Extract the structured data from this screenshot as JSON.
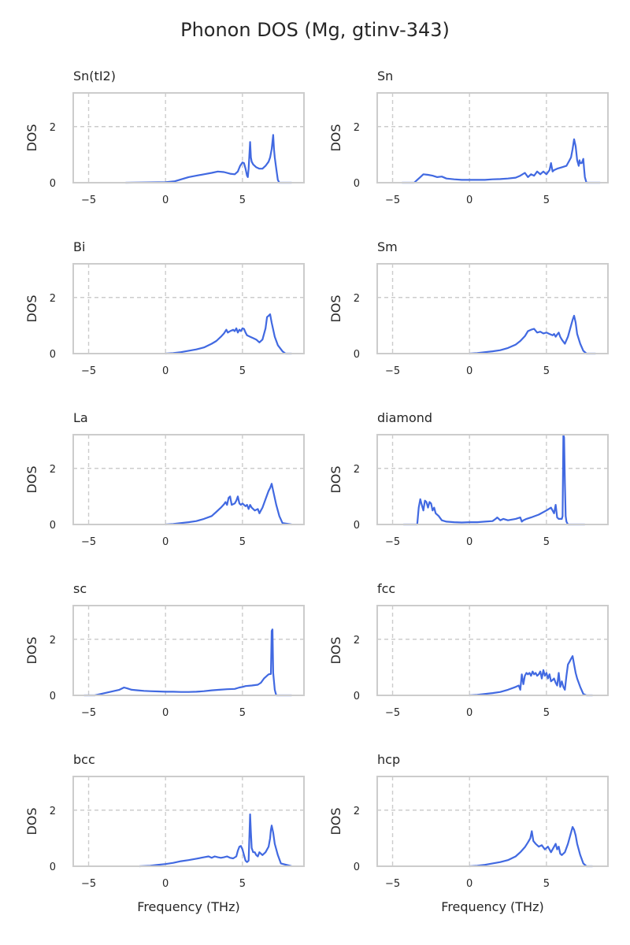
{
  "figure": {
    "title": "Phonon DOS (Mg, gtinv-343)"
  },
  "colors": {
    "line": "#4169e1",
    "grid": "#cccccc",
    "frame": "#cccccc",
    "text": "#262626"
  },
  "chart_data": [
    {
      "type": "line",
      "title": "Sn(tI2)",
      "ylabel": "DOS",
      "xlabel": "",
      "xlim": [
        -6,
        9
      ],
      "ylim": [
        0,
        3.2
      ],
      "xticks": [
        -5,
        0,
        5
      ],
      "yticks": [
        0,
        2
      ],
      "grid": true,
      "x": [
        -2.6,
        -1,
        0,
        0.6,
        0.9,
        1.2,
        1.5,
        2,
        2.5,
        3,
        3.4,
        3.8,
        4.2,
        4.5,
        4.7,
        4.85,
        5,
        5.1,
        5.2,
        5.3,
        5.35,
        5.4,
        5.5,
        5.55,
        5.6,
        5.7,
        5.9,
        6.1,
        6.3,
        6.5,
        6.7,
        6.8,
        6.9,
        7.0,
        7.05,
        7.1,
        7.2,
        7.3,
        7.4,
        8.2
      ],
      "y": [
        0,
        0.01,
        0.02,
        0.05,
        0.1,
        0.15,
        0.2,
        0.25,
        0.3,
        0.35,
        0.4,
        0.38,
        0.32,
        0.3,
        0.4,
        0.6,
        0.72,
        0.7,
        0.5,
        0.25,
        0.2,
        0.5,
        1.45,
        0.9,
        0.75,
        0.65,
        0.55,
        0.5,
        0.5,
        0.6,
        0.75,
        0.9,
        1.2,
        1.7,
        1.2,
        0.9,
        0.5,
        0.1,
        0,
        0
      ]
    },
    {
      "type": "line",
      "title": "Sn",
      "ylabel": "DOS",
      "xlabel": "",
      "xlim": [
        -6,
        9
      ],
      "ylim": [
        0,
        3.2
      ],
      "xticks": [
        -5,
        0,
        5
      ],
      "yticks": [
        0,
        2
      ],
      "grid": true,
      "x": [
        -4.4,
        -3.6,
        -3.4,
        -3.2,
        -3.0,
        -2.7,
        -2.4,
        -2.1,
        -1.8,
        -1.5,
        -1,
        -0.5,
        0,
        0.5,
        1,
        1.5,
        2,
        2.5,
        3,
        3.3,
        3.6,
        3.8,
        4.0,
        4.2,
        4.4,
        4.5,
        4.6,
        4.7,
        4.8,
        5,
        5.2,
        5.3,
        5.4,
        5.5,
        5.7,
        6,
        6.3,
        6.5,
        6.6,
        6.7,
        6.8,
        6.9,
        7.0,
        7.1,
        7.15,
        7.2,
        7.3,
        7.4,
        7.45,
        7.5,
        7.6,
        8.5
      ],
      "y": [
        0,
        0,
        0.1,
        0.2,
        0.3,
        0.28,
        0.25,
        0.2,
        0.22,
        0.15,
        0.12,
        0.1,
        0.1,
        0.1,
        0.1,
        0.12,
        0.13,
        0.15,
        0.18,
        0.25,
        0.35,
        0.2,
        0.3,
        0.25,
        0.4,
        0.35,
        0.3,
        0.35,
        0.4,
        0.3,
        0.45,
        0.7,
        0.4,
        0.45,
        0.5,
        0.55,
        0.6,
        0.8,
        0.9,
        1.2,
        1.55,
        1.3,
        0.8,
        0.6,
        0.8,
        0.7,
        0.7,
        0.85,
        0.5,
        0.2,
        0,
        0
      ]
    },
    {
      "type": "line",
      "title": "Bi",
      "ylabel": "DOS",
      "xlabel": "",
      "xlim": [
        -6,
        9
      ],
      "ylim": [
        0,
        3.2
      ],
      "xticks": [
        -5,
        0,
        5
      ],
      "yticks": [
        0,
        2
      ],
      "grid": true,
      "x": [
        0,
        0.5,
        1,
        1.5,
        2,
        2.5,
        3,
        3.3,
        3.6,
        3.8,
        3.95,
        4.05,
        4.2,
        4.4,
        4.5,
        4.6,
        4.7,
        4.8,
        4.9,
        5.0,
        5.1,
        5.2,
        5.3,
        5.5,
        5.7,
        5.9,
        6.1,
        6.3,
        6.5,
        6.6,
        6.7,
        6.8,
        6.9,
        7.1,
        7.3,
        7.6,
        7.8,
        8.2
      ],
      "y": [
        0,
        0.02,
        0.05,
        0.1,
        0.15,
        0.22,
        0.35,
        0.45,
        0.6,
        0.72,
        0.85,
        0.75,
        0.8,
        0.85,
        0.8,
        0.9,
        0.75,
        0.85,
        0.8,
        0.9,
        0.88,
        0.75,
        0.65,
        0.6,
        0.55,
        0.5,
        0.4,
        0.5,
        0.9,
        1.3,
        1.35,
        1.4,
        1.1,
        0.6,
        0.3,
        0.08,
        0,
        0
      ]
    },
    {
      "type": "line",
      "title": "Sm",
      "ylabel": "DOS",
      "xlabel": "",
      "xlim": [
        -6,
        9
      ],
      "ylim": [
        0,
        3.2
      ],
      "xticks": [
        -5,
        0,
        5
      ],
      "yticks": [
        0,
        2
      ],
      "grid": true,
      "x": [
        0,
        0.5,
        1,
        1.5,
        2,
        2.5,
        3,
        3.3,
        3.6,
        3.8,
        4.0,
        4.2,
        4.4,
        4.6,
        4.8,
        5.0,
        5.2,
        5.4,
        5.5,
        5.6,
        5.7,
        5.8,
        5.9,
        6.0,
        6.2,
        6.4,
        6.6,
        6.7,
        6.8,
        6.9,
        7.0,
        7.2,
        7.4,
        7.6,
        8.2
      ],
      "y": [
        0,
        0.02,
        0.05,
        0.08,
        0.12,
        0.2,
        0.32,
        0.45,
        0.62,
        0.8,
        0.85,
        0.88,
        0.75,
        0.78,
        0.72,
        0.75,
        0.7,
        0.65,
        0.7,
        0.6,
        0.68,
        0.75,
        0.6,
        0.5,
        0.35,
        0.6,
        1.0,
        1.2,
        1.35,
        1.1,
        0.7,
        0.35,
        0.1,
        0,
        0
      ]
    },
    {
      "type": "line",
      "title": "La",
      "ylabel": "DOS",
      "xlabel": "",
      "xlim": [
        -6,
        9
      ],
      "ylim": [
        0,
        3.2
      ],
      "xticks": [
        -5,
        0,
        5
      ],
      "yticks": [
        0,
        2
      ],
      "grid": true,
      "x": [
        0,
        0.5,
        1,
        1.5,
        2,
        2.5,
        3,
        3.3,
        3.6,
        3.8,
        3.9,
        4.0,
        4.1,
        4.2,
        4.3,
        4.5,
        4.6,
        4.7,
        4.8,
        4.9,
        5.0,
        5.2,
        5.3,
        5.4,
        5.5,
        5.6,
        5.8,
        6.0,
        6.1,
        6.2,
        6.3,
        6.5,
        6.7,
        6.8,
        6.9,
        7.0,
        7.2,
        7.4,
        7.6,
        8.2
      ],
      "y": [
        0,
        0.02,
        0.05,
        0.08,
        0.12,
        0.2,
        0.3,
        0.45,
        0.6,
        0.72,
        0.8,
        0.7,
        0.95,
        1.0,
        0.7,
        0.75,
        0.85,
        1.0,
        0.75,
        0.7,
        0.75,
        0.65,
        0.7,
        0.55,
        0.7,
        0.6,
        0.5,
        0.55,
        0.4,
        0.5,
        0.6,
        0.9,
        1.2,
        1.3,
        1.45,
        1.2,
        0.7,
        0.3,
        0.05,
        0
      ]
    },
    {
      "type": "line",
      "title": "diamond",
      "ylabel": "DOS",
      "xlabel": "",
      "xlim": [
        -6,
        9
      ],
      "ylim": [
        0,
        3.2
      ],
      "xticks": [
        -5,
        0,
        5
      ],
      "yticks": [
        0,
        2
      ],
      "grid": true,
      "x": [
        -4.3,
        -3.4,
        -3.3,
        -3.2,
        -3.1,
        -3.0,
        -2.9,
        -2.8,
        -2.7,
        -2.6,
        -2.5,
        -2.4,
        -2.3,
        -2.2,
        -2.0,
        -1.8,
        -1.5,
        -1,
        -0.5,
        0,
        0.5,
        1,
        1.5,
        1.7,
        1.8,
        2.0,
        2.2,
        2.5,
        3.0,
        3.3,
        3.4,
        3.5,
        3.7,
        4.0,
        4.5,
        5.0,
        5.3,
        5.5,
        5.6,
        5.7,
        5.8,
        5.9,
        6.0,
        6.05,
        6.1,
        6.15,
        6.2,
        6.25,
        6.3,
        6.4,
        7.0,
        7.5
      ],
      "y": [
        0,
        0,
        0.6,
        0.9,
        0.7,
        0.5,
        0.85,
        0.8,
        0.6,
        0.8,
        0.75,
        0.5,
        0.6,
        0.4,
        0.3,
        0.15,
        0.1,
        0.08,
        0.07,
        0.08,
        0.08,
        0.1,
        0.12,
        0.2,
        0.25,
        0.15,
        0.2,
        0.15,
        0.2,
        0.25,
        0.1,
        0.15,
        0.2,
        0.25,
        0.35,
        0.5,
        0.6,
        0.4,
        0.7,
        0.25,
        0.2,
        0.2,
        0.2,
        0.3,
        3.2,
        3.1,
        1.5,
        0.3,
        0.1,
        0,
        0,
        0
      ]
    },
    {
      "type": "line",
      "title": "sc",
      "ylabel": "DOS",
      "xlabel": "",
      "xlim": [
        -6,
        9
      ],
      "ylim": [
        0,
        3.2
      ],
      "xticks": [
        -5,
        0,
        5
      ],
      "yticks": [
        0,
        2
      ],
      "grid": true,
      "x": [
        -5.3,
        -4.6,
        -4.2,
        -3.8,
        -3.4,
        -3.0,
        -2.7,
        -2.5,
        -2.2,
        -1.8,
        -1.4,
        -1,
        -0.5,
        0,
        0.5,
        1,
        1.5,
        2,
        2.5,
        3,
        3.5,
        4,
        4.5,
        4.8,
        5,
        5.2,
        5.6,
        6.0,
        6.2,
        6.4,
        6.6,
        6.7,
        6.8,
        6.85,
        6.9,
        6.95,
        7.0,
        7.05,
        7.1,
        7.2,
        8.2
      ],
      "y": [
        0,
        0,
        0.05,
        0.1,
        0.15,
        0.2,
        0.28,
        0.25,
        0.2,
        0.18,
        0.16,
        0.15,
        0.14,
        0.13,
        0.13,
        0.12,
        0.12,
        0.13,
        0.15,
        0.18,
        0.2,
        0.22,
        0.23,
        0.28,
        0.3,
        0.33,
        0.35,
        0.38,
        0.45,
        0.6,
        0.7,
        0.75,
        0.76,
        0.76,
        2.3,
        2.35,
        0.8,
        0.5,
        0.2,
        0,
        0
      ]
    },
    {
      "type": "line",
      "title": "fcc",
      "ylabel": "DOS",
      "xlabel": "",
      "xlim": [
        -6,
        9
      ],
      "ylim": [
        0,
        3.2
      ],
      "xticks": [
        -5,
        0,
        5
      ],
      "yticks": [
        0,
        2
      ],
      "grid": true,
      "x": [
        0,
        0.5,
        1,
        1.5,
        2,
        2.5,
        3,
        3.2,
        3.3,
        3.4,
        3.5,
        3.6,
        3.7,
        3.8,
        3.9,
        4.0,
        4.1,
        4.2,
        4.3,
        4.4,
        4.5,
        4.6,
        4.7,
        4.8,
        4.9,
        5.0,
        5.1,
        5.2,
        5.3,
        5.4,
        5.5,
        5.6,
        5.7,
        5.8,
        5.9,
        6.0,
        6.1,
        6.2,
        6.3,
        6.4,
        6.5,
        6.6,
        6.7,
        6.8,
        6.9,
        7.0,
        7.2,
        7.4,
        7.6,
        8.0
      ],
      "y": [
        0,
        0.02,
        0.05,
        0.08,
        0.12,
        0.2,
        0.3,
        0.35,
        0.2,
        0.75,
        0.4,
        0.7,
        0.8,
        0.75,
        0.8,
        0.7,
        0.85,
        0.75,
        0.8,
        0.7,
        0.75,
        0.85,
        0.6,
        0.9,
        0.7,
        0.8,
        0.6,
        0.75,
        0.5,
        0.55,
        0.6,
        0.45,
        0.35,
        0.8,
        0.3,
        0.5,
        0.3,
        0.2,
        0.7,
        1.1,
        1.2,
        1.3,
        1.4,
        1.1,
        0.8,
        0.6,
        0.3,
        0.05,
        0,
        0
      ]
    },
    {
      "type": "line",
      "title": "bcc",
      "ylabel": "DOS",
      "xlabel": "",
      "xlim": [
        -6,
        9
      ],
      "ylim": [
        0,
        3.2
      ],
      "xticks": [
        -5,
        0,
        5
      ],
      "yticks": [
        0,
        2
      ],
      "grid": true,
      "x": [
        -1.7,
        -1,
        -0.5,
        0,
        0.5,
        1,
        1.5,
        2,
        2.5,
        2.8,
        3,
        3.2,
        3.4,
        3.6,
        3.8,
        4,
        4.2,
        4.4,
        4.6,
        4.7,
        4.8,
        4.9,
        5.0,
        5.1,
        5.2,
        5.3,
        5.4,
        5.5,
        5.55,
        5.6,
        5.7,
        5.8,
        5.9,
        6.0,
        6.1,
        6.2,
        6.3,
        6.5,
        6.7,
        6.8,
        6.85,
        6.9,
        7.0,
        7.1,
        7.3,
        7.5,
        8.2
      ],
      "y": [
        0,
        0.02,
        0.05,
        0.08,
        0.12,
        0.18,
        0.22,
        0.27,
        0.32,
        0.35,
        0.3,
        0.35,
        0.32,
        0.3,
        0.32,
        0.35,
        0.3,
        0.28,
        0.35,
        0.55,
        0.7,
        0.72,
        0.6,
        0.4,
        0.2,
        0.15,
        0.2,
        1.85,
        1.2,
        0.65,
        0.5,
        0.5,
        0.4,
        0.35,
        0.5,
        0.45,
        0.4,
        0.5,
        0.7,
        1.0,
        1.3,
        1.45,
        1.2,
        0.8,
        0.4,
        0.1,
        0
      ]
    },
    {
      "type": "line",
      "title": "hcp",
      "ylabel": "DOS",
      "xlabel": "",
      "xlim": [
        -6,
        9
      ],
      "ylim": [
        0,
        3.2
      ],
      "xticks": [
        -5,
        0,
        5
      ],
      "yticks": [
        0,
        2
      ],
      "grid": true,
      "x": [
        0,
        0.5,
        1,
        1.5,
        2,
        2.5,
        3,
        3.3,
        3.6,
        3.8,
        3.95,
        4.05,
        4.15,
        4.3,
        4.5,
        4.7,
        4.9,
        5.1,
        5.3,
        5.5,
        5.6,
        5.7,
        5.8,
        5.9,
        6.0,
        6.2,
        6.4,
        6.6,
        6.7,
        6.8,
        6.9,
        7.0,
        7.2,
        7.4,
        7.6,
        8.0
      ],
      "y": [
        0,
        0.02,
        0.05,
        0.1,
        0.15,
        0.22,
        0.35,
        0.5,
        0.68,
        0.85,
        1.0,
        1.25,
        0.9,
        0.8,
        0.7,
        0.75,
        0.6,
        0.7,
        0.5,
        0.7,
        0.8,
        0.6,
        0.7,
        0.45,
        0.4,
        0.5,
        0.8,
        1.2,
        1.4,
        1.3,
        1.1,
        0.8,
        0.4,
        0.1,
        0,
        0
      ]
    }
  ]
}
